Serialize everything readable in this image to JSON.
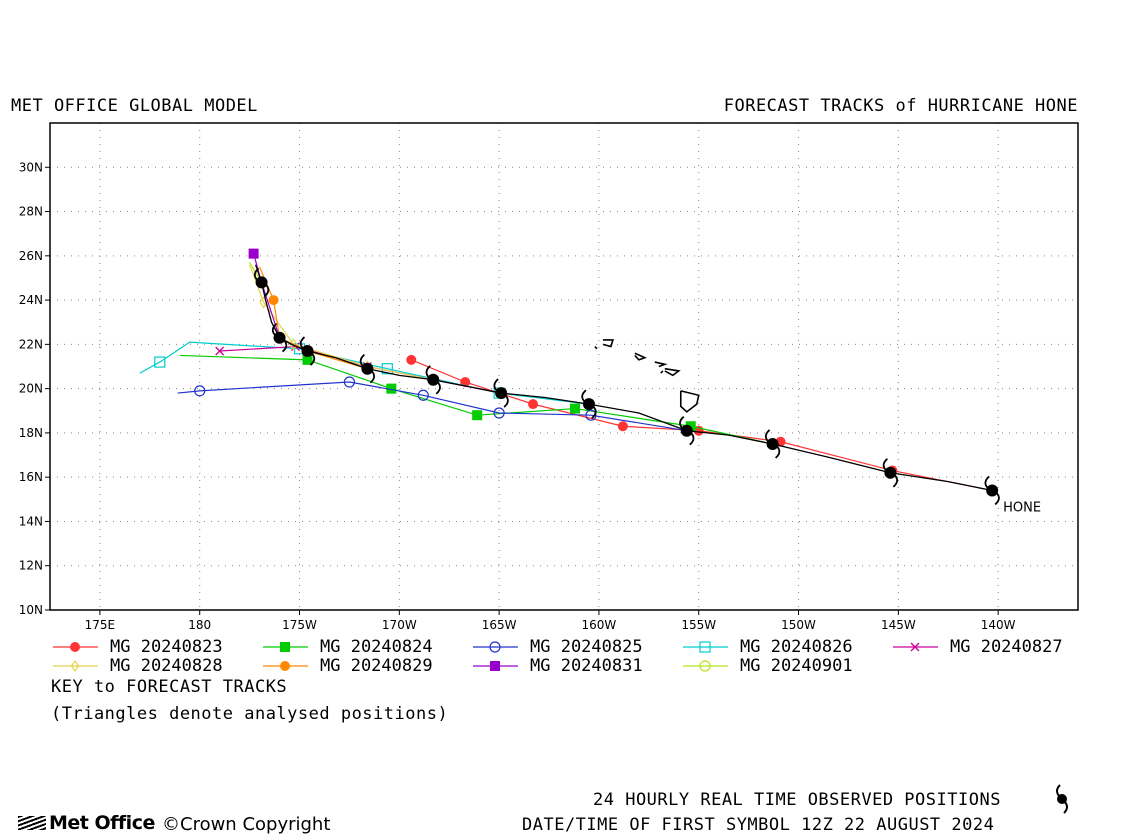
{
  "header": {
    "left_title": "MET OFFICE GLOBAL MODEL",
    "right_title": "FORECAST TRACKS of HURRICANE HONE"
  },
  "map": {
    "lon_range": [
      -187.5,
      -136.0
    ],
    "lat_range": [
      10,
      32
    ],
    "lon_ticks": [
      {
        "value": -185,
        "label": "175E"
      },
      {
        "value": -180,
        "label": "180"
      },
      {
        "value": -175,
        "label": "175W"
      },
      {
        "value": -170,
        "label": "170W"
      },
      {
        "value": -165,
        "label": "165W"
      },
      {
        "value": -160,
        "label": "160W"
      },
      {
        "value": -155,
        "label": "155W"
      },
      {
        "value": -150,
        "label": "150W"
      },
      {
        "value": -145,
        "label": "145W"
      },
      {
        "value": -140,
        "label": "140W"
      }
    ],
    "lat_ticks": [
      {
        "value": 10,
        "label": "10N"
      },
      {
        "value": 12,
        "label": "12N"
      },
      {
        "value": 14,
        "label": "14N"
      },
      {
        "value": 16,
        "label": "16N"
      },
      {
        "value": 18,
        "label": "18N"
      },
      {
        "value": 20,
        "label": "20N"
      },
      {
        "value": 22,
        "label": "22N"
      },
      {
        "value": 24,
        "label": "24N"
      },
      {
        "value": 26,
        "label": "26N"
      },
      {
        "value": 28,
        "label": "28N"
      },
      {
        "value": 30,
        "label": "30N"
      }
    ],
    "grid": true,
    "storm_label": "HONE",
    "observed_positions": [
      [
        -140.3,
        15.4
      ],
      [
        -145.4,
        16.2
      ],
      [
        -151.3,
        17.5
      ],
      [
        -155.6,
        18.1
      ],
      [
        -160.5,
        19.3
      ],
      [
        -164.9,
        19.8
      ],
      [
        -168.3,
        20.4
      ],
      [
        -171.6,
        20.9
      ],
      [
        -174.6,
        21.7
      ],
      [
        -176.0,
        22.3
      ],
      [
        -176.9,
        24.8
      ]
    ],
    "observed_track": [
      [
        -140.3,
        15.4
      ],
      [
        -142.5,
        15.8
      ],
      [
        -145.4,
        16.2
      ],
      [
        -148.5,
        16.9
      ],
      [
        -151.3,
        17.5
      ],
      [
        -153.5,
        17.9
      ],
      [
        -155.6,
        18.1
      ],
      [
        -158.0,
        18.9
      ],
      [
        -160.5,
        19.3
      ],
      [
        -162.7,
        19.6
      ],
      [
        -164.9,
        19.8
      ],
      [
        -166.6,
        20.1
      ],
      [
        -168.3,
        20.4
      ],
      [
        -170.0,
        20.6
      ],
      [
        -171.6,
        20.9
      ],
      [
        -173.2,
        21.4
      ],
      [
        -174.6,
        21.7
      ],
      [
        -175.4,
        22.0
      ],
      [
        -176.0,
        22.3
      ],
      [
        -176.4,
        23.0
      ],
      [
        -176.7,
        24.0
      ],
      [
        -176.9,
        24.8
      ],
      [
        -177.2,
        25.6
      ]
    ],
    "islands": [
      [
        [
          -155.9,
          19.9
        ],
        [
          -155.0,
          19.7
        ],
        [
          -155.1,
          19.3
        ],
        [
          -155.6,
          18.95
        ],
        [
          -155.9,
          19.2
        ],
        [
          -155.9,
          19.9
        ]
      ],
      [
        [
          -156.7,
          20.9
        ],
        [
          -156.0,
          20.8
        ],
        [
          -156.3,
          20.6
        ],
        [
          -156.7,
          20.8
        ]
      ],
      [
        [
          -158.2,
          21.6
        ],
        [
          -157.7,
          21.4
        ],
        [
          -158.0,
          21.3
        ],
        [
          -158.2,
          21.5
        ]
      ],
      [
        [
          -159.8,
          22.2
        ],
        [
          -159.3,
          22.2
        ],
        [
          -159.4,
          21.9
        ],
        [
          -159.8,
          22.0
        ]
      ],
      [
        [
          -160.2,
          21.9
        ],
        [
          -160.1,
          21.8
        ]
      ],
      [
        [
          -157.2,
          21.2
        ],
        [
          -156.7,
          21.1
        ],
        [
          -157.0,
          21.0
        ]
      ],
      [
        [
          -156.9,
          20.7
        ],
        [
          -156.8,
          20.8
        ]
      ]
    ]
  },
  "chart_data": {
    "type": "scatter",
    "series": [
      {
        "name": "MG 20240823",
        "color": "#ff3333",
        "marker": "circle-filled",
        "points": [
          [
            -140.3,
            15.4
          ],
          [
            -145.3,
            16.3
          ],
          [
            -150.9,
            17.6
          ],
          [
            -155.0,
            18.1
          ],
          [
            -158.8,
            18.3
          ],
          [
            -163.3,
            19.3
          ],
          [
            -166.7,
            20.3
          ],
          [
            -169.4,
            21.3
          ]
        ],
        "markers": [
          [
            -145.3,
            16.3
          ],
          [
            -150.9,
            17.6
          ],
          [
            -155.0,
            18.1
          ],
          [
            -158.8,
            18.3
          ],
          [
            -163.3,
            19.3
          ],
          [
            -166.7,
            20.3
          ],
          [
            -169.4,
            21.3
          ]
        ]
      },
      {
        "name": "MG 20240824",
        "color": "#00cc00",
        "marker": "square-filled",
        "points": [
          [
            -151.3,
            17.5
          ],
          [
            -155.4,
            18.3
          ],
          [
            -161.2,
            19.1
          ],
          [
            -166.1,
            18.8
          ],
          [
            -170.4,
            20.0
          ],
          [
            -174.6,
            21.3
          ],
          [
            -181.0,
            21.5
          ]
        ],
        "markers": [
          [
            -155.4,
            18.3
          ],
          [
            -161.2,
            19.1
          ],
          [
            -166.1,
            18.8
          ],
          [
            -170.4,
            20.0
          ],
          [
            -174.6,
            21.3
          ]
        ]
      },
      {
        "name": "MG 20240825",
        "color": "#2233cc",
        "marker": "circle-open",
        "points": [
          [
            -155.6,
            18.1
          ],
          [
            -160.4,
            18.8
          ],
          [
            -165.0,
            18.9
          ],
          [
            -168.8,
            19.7
          ],
          [
            -172.5,
            20.3
          ],
          [
            -180.0,
            19.9
          ],
          [
            -181.1,
            19.8
          ]
        ],
        "markers": [
          [
            -160.4,
            18.8
          ],
          [
            -165.0,
            18.9
          ],
          [
            -168.8,
            19.7
          ],
          [
            -172.5,
            20.3
          ],
          [
            -180.0,
            19.9
          ]
        ]
      },
      {
        "name": "MG 20240826",
        "color": "#00cccc",
        "marker": "square-open",
        "points": [
          [
            -160.5,
            19.3
          ],
          [
            -165.0,
            19.8
          ],
          [
            -170.6,
            20.9
          ],
          [
            -175.0,
            21.8
          ],
          [
            -180.5,
            22.1
          ],
          [
            -182.0,
            21.2
          ],
          [
            -183.0,
            20.7
          ]
        ],
        "markers": [
          [
            -165.0,
            19.8
          ],
          [
            -170.6,
            20.9
          ],
          [
            -175.0,
            21.8
          ],
          [
            -182.0,
            21.2
          ]
        ]
      },
      {
        "name": "MG 20240827",
        "color": "#cc0099",
        "marker": "x",
        "points": [
          [
            -164.9,
            19.8
          ],
          [
            -168.3,
            20.4
          ],
          [
            -171.6,
            21.0
          ],
          [
            -175.2,
            21.9
          ],
          [
            -179.0,
            21.7
          ]
        ],
        "markers": [
          [
            -168.3,
            20.4
          ],
          [
            -171.6,
            21.0
          ],
          [
            -175.2,
            21.9
          ],
          [
            -179.0,
            21.7
          ]
        ]
      },
      {
        "name": "MG 20240828",
        "color": "#e6d24d",
        "marker": "diamond-open",
        "points": [
          [
            -168.3,
            20.4
          ],
          [
            -171.6,
            21.0
          ],
          [
            -175.3,
            22.0
          ],
          [
            -176.8,
            23.9
          ],
          [
            -177.5,
            25.6
          ]
        ],
        "markers": [
          [
            -171.6,
            21.0
          ],
          [
            -175.3,
            22.0
          ],
          [
            -176.8,
            23.9
          ]
        ]
      },
      {
        "name": "MG 20240829",
        "color": "#ff8800",
        "marker": "circle-filled",
        "points": [
          [
            -171.6,
            20.9
          ],
          [
            -174.6,
            21.7
          ],
          [
            -176.0,
            22.3
          ],
          [
            -176.3,
            24.0
          ],
          [
            -177.0,
            25.5
          ]
        ],
        "markers": [
          [
            -176.3,
            24.0
          ]
        ]
      },
      {
        "name": "MG 20240831",
        "color": "#9900cc",
        "marker": "square-filled",
        "points": [
          [
            -176.0,
            22.3
          ],
          [
            -176.9,
            24.8
          ],
          [
            -177.3,
            26.1
          ]
        ],
        "markers": [
          [
            -177.3,
            26.1
          ]
        ]
      },
      {
        "name": "MG 20240901",
        "color": "#b5e61d",
        "marker": "circle-open",
        "points": [
          [
            -176.9,
            24.8
          ],
          [
            -177.5,
            25.7
          ]
        ],
        "markers": []
      }
    ]
  },
  "legend": {
    "rows": [
      [
        "MG 20240823",
        "MG 20240824",
        "MG 20240825",
        "MG 20240826",
        "MG 20240827"
      ],
      [
        "MG 20240828",
        "MG 20240829",
        "MG 20240831",
        "MG 20240901"
      ]
    ],
    "key_title": "KEY to FORECAST TRACKS",
    "key_note": "(Triangles denote analysed positions)"
  },
  "footer": {
    "observed_note": "24 HOURLY REAL TIME OBSERVED POSITIONS",
    "datetime_note": "DATE/TIME OF FIRST SYMBOL 12Z 22 AUGUST 2024",
    "logo_text": "Met Office",
    "copyright": "©Crown Copyright"
  }
}
